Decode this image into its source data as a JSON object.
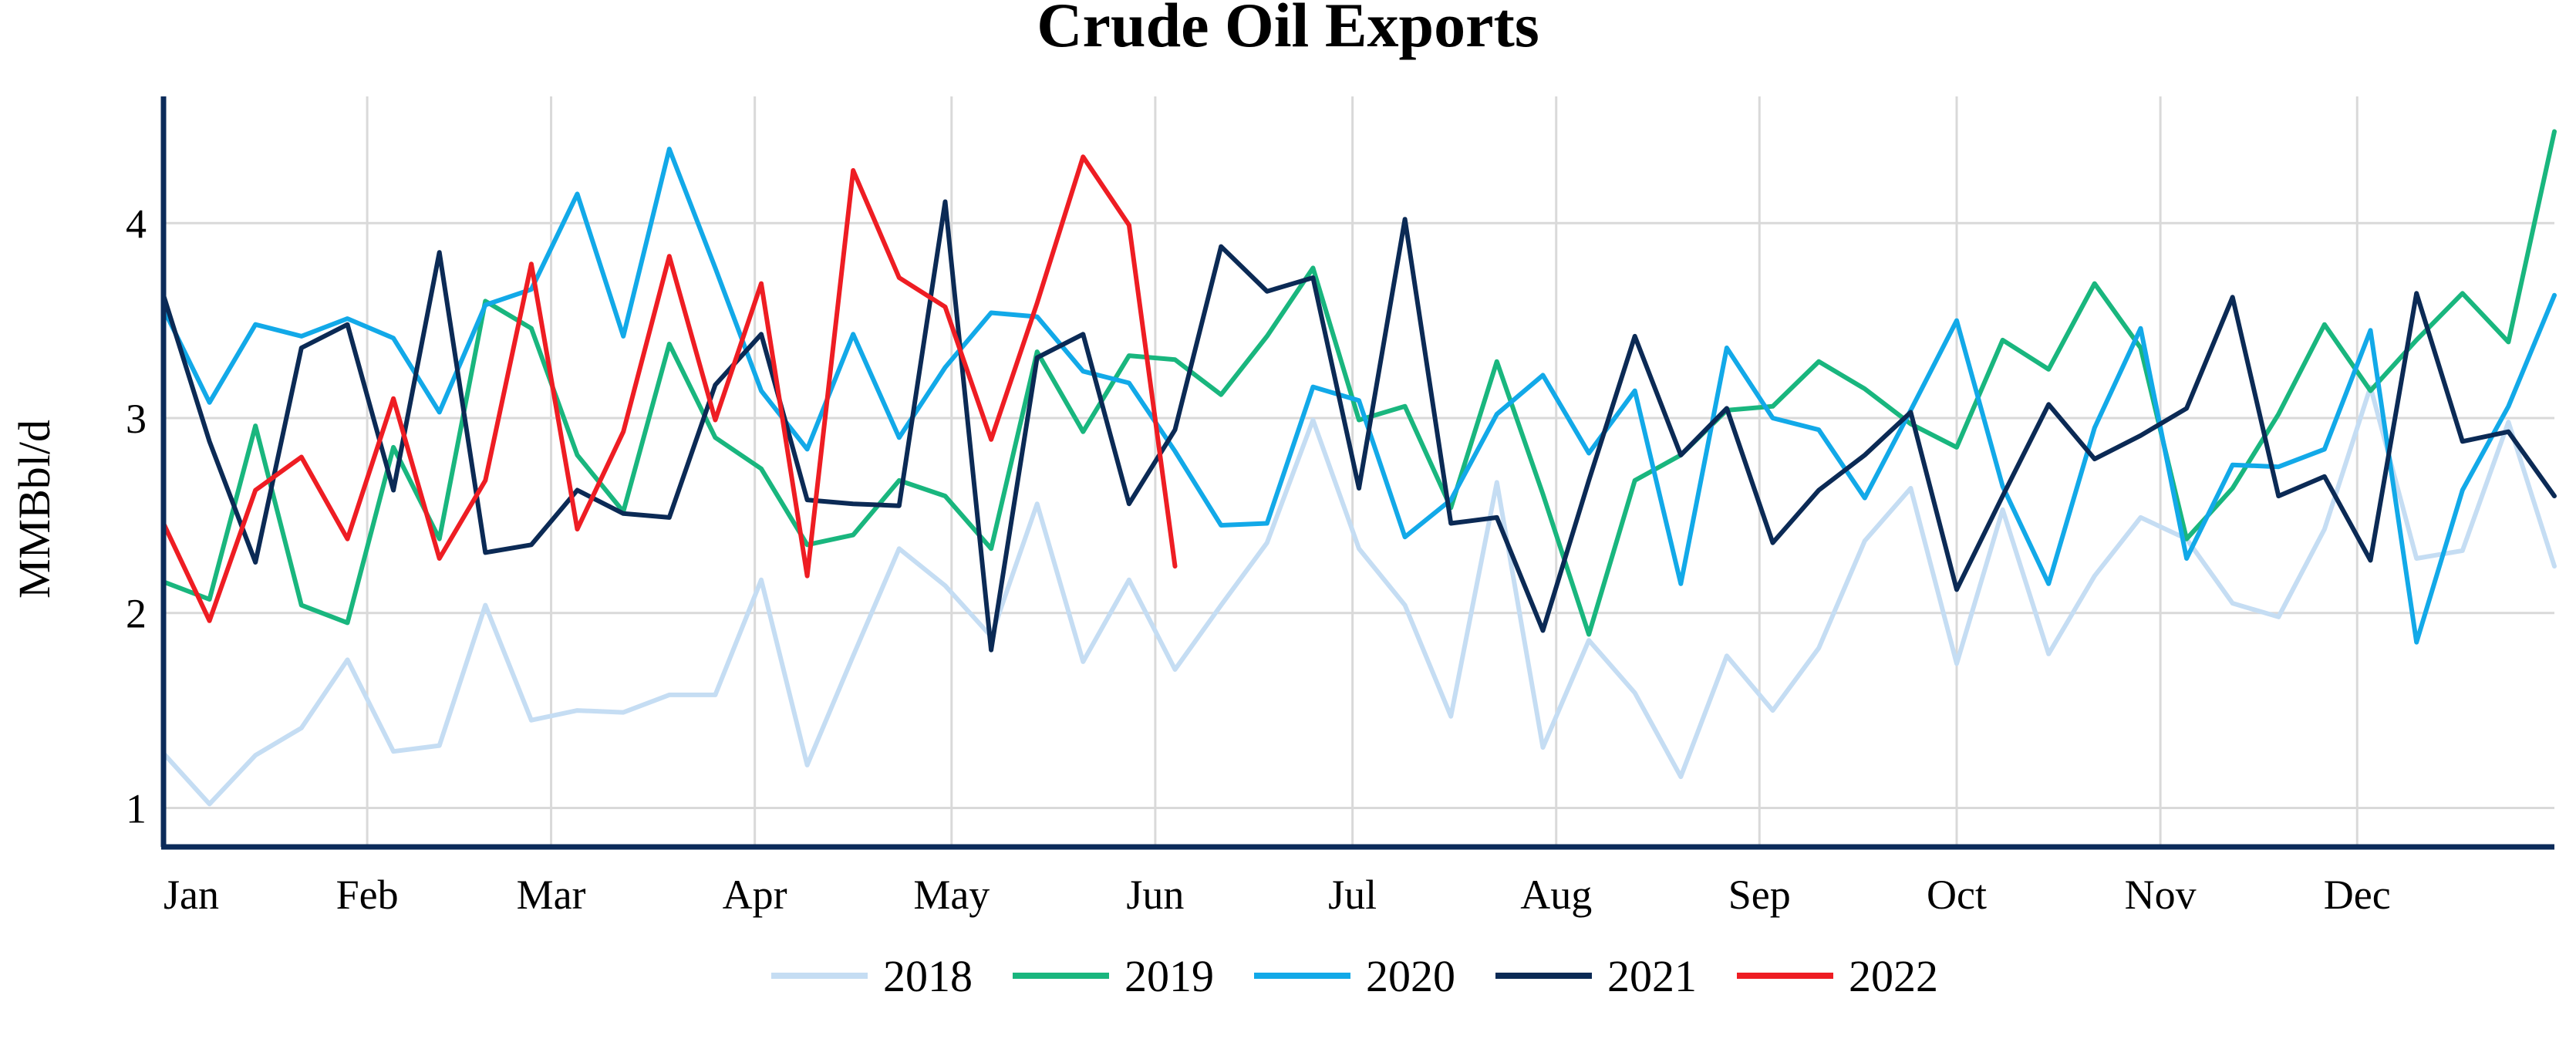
{
  "chart_data": {
    "type": "line",
    "title": "Crude Oil Exports",
    "xlabel": "",
    "ylabel": "MMBbl/d",
    "ylim": [
      0.8,
      4.65
    ],
    "yticks": [
      1,
      2,
      3,
      4
    ],
    "x_tick_labels": [
      "Jan",
      "Feb",
      "Mar",
      "Apr",
      "May",
      "Jun",
      "Jul",
      "Aug",
      "Sep",
      "Oct",
      "Nov",
      "Dec"
    ],
    "x_unit": "week of year (1-53)",
    "xlim": [
      1,
      53
    ],
    "grid": true,
    "legend_position": "bottom",
    "series": [
      {
        "name": "2018",
        "color": "#c5ddf3",
        "x": [
          1,
          2,
          3,
          4,
          5,
          6,
          7,
          8,
          9,
          10,
          11,
          12,
          13,
          14,
          15,
          16,
          17,
          18,
          19,
          20,
          21,
          22,
          23,
          24,
          25,
          26,
          27,
          28,
          29,
          30,
          31,
          32,
          33,
          34,
          35,
          36,
          37,
          38,
          39,
          40,
          41,
          42,
          43,
          44,
          45,
          46,
          47,
          48,
          49,
          50,
          51,
          52,
          53
        ],
        "values": [
          1.28,
          1.02,
          1.27,
          1.41,
          1.76,
          1.29,
          1.32,
          2.04,
          1.45,
          1.5,
          1.49,
          1.58,
          1.58,
          2.17,
          1.22,
          1.78,
          2.33,
          2.14,
          1.88,
          2.56,
          1.75,
          2.17,
          1.71,
          2.04,
          2.36,
          2.99,
          2.33,
          2.04,
          1.47,
          2.67,
          1.31,
          1.86,
          1.59,
          1.16,
          1.78,
          1.5,
          1.82,
          2.37,
          2.64,
          1.74,
          2.53,
          1.79,
          2.19,
          2.49,
          2.38,
          2.05,
          1.98,
          2.43,
          3.16,
          2.28,
          2.32,
          2.98,
          2.24
        ]
      },
      {
        "name": "2019",
        "color": "#19b67e",
        "x": [
          1,
          2,
          3,
          4,
          5,
          6,
          7,
          8,
          9,
          10,
          11,
          12,
          13,
          14,
          15,
          16,
          17,
          18,
          19,
          20,
          21,
          22,
          23,
          24,
          25,
          26,
          27,
          28,
          29,
          30,
          31,
          32,
          33,
          34,
          35,
          36,
          37,
          38,
          39,
          40,
          41,
          42,
          43,
          44,
          45,
          46,
          47,
          48,
          49,
          50,
          51,
          52,
          53
        ],
        "values": [
          2.16,
          2.07,
          2.96,
          2.04,
          1.95,
          2.85,
          2.38,
          3.6,
          3.46,
          2.81,
          2.52,
          3.38,
          2.9,
          2.74,
          2.35,
          2.4,
          2.68,
          2.6,
          2.33,
          3.34,
          2.93,
          3.32,
          3.3,
          3.12,
          3.42,
          3.77,
          2.99,
          3.06,
          2.54,
          3.29,
          2.61,
          1.89,
          2.68,
          2.81,
          3.04,
          3.06,
          3.29,
          3.15,
          2.97,
          2.85,
          3.4,
          3.25,
          3.69,
          3.36,
          2.38,
          2.64,
          3.02,
          3.48,
          3.14,
          3.4,
          3.64,
          3.39,
          4.47
        ]
      },
      {
        "name": "2020",
        "color": "#12a9e8",
        "x": [
          1,
          2,
          3,
          4,
          5,
          6,
          7,
          8,
          9,
          10,
          11,
          12,
          13,
          14,
          15,
          16,
          17,
          18,
          19,
          20,
          21,
          22,
          23,
          24,
          25,
          26,
          27,
          28,
          29,
          30,
          31,
          32,
          33,
          34,
          35,
          36,
          37,
          38,
          39,
          40,
          41,
          42,
          43,
          44,
          45,
          46,
          47,
          48,
          49,
          50,
          51,
          52,
          53
        ],
        "values": [
          3.56,
          3.08,
          3.48,
          3.42,
          3.51,
          3.41,
          3.03,
          3.58,
          3.66,
          4.15,
          3.42,
          4.38,
          3.77,
          3.14,
          2.84,
          3.43,
          2.9,
          3.26,
          3.54,
          3.52,
          3.24,
          3.18,
          2.83,
          2.45,
          2.46,
          3.16,
          3.09,
          2.39,
          2.58,
          3.02,
          3.22,
          2.82,
          3.14,
          2.15,
          3.36,
          3.0,
          2.94,
          2.59,
          3.04,
          3.5,
          2.65,
          2.15,
          2.95,
          3.46,
          2.28,
          2.76,
          2.75,
          2.84,
          3.45,
          1.85,
          2.63,
          3.06,
          3.63
        ]
      },
      {
        "name": "2021",
        "color": "#0b2a55",
        "x": [
          1,
          2,
          3,
          4,
          5,
          6,
          7,
          8,
          9,
          10,
          11,
          12,
          13,
          14,
          15,
          16,
          17,
          18,
          19,
          20,
          21,
          22,
          23,
          24,
          25,
          26,
          27,
          28,
          29,
          30,
          31,
          32,
          33,
          34,
          35,
          36,
          37,
          38,
          39,
          40,
          41,
          42,
          43,
          44,
          45,
          46,
          47,
          48,
          49,
          50,
          51,
          52,
          53
        ],
        "values": [
          3.63,
          2.88,
          2.26,
          3.36,
          3.48,
          2.63,
          3.85,
          2.31,
          2.35,
          2.63,
          2.51,
          2.49,
          3.17,
          3.43,
          2.58,
          2.56,
          2.55,
          4.11,
          1.81,
          3.31,
          3.43,
          2.56,
          2.94,
          3.88,
          3.65,
          3.72,
          2.64,
          4.02,
          2.46,
          2.49,
          1.91,
          2.68,
          3.42,
          2.81,
          3.05,
          2.36,
          2.63,
          2.81,
          3.03,
          2.12,
          2.6,
          3.07,
          2.79,
          2.91,
          3.05,
          3.62,
          2.6,
          2.7,
          2.27,
          3.64,
          2.88,
          2.93,
          2.6
        ]
      },
      {
        "name": "2022",
        "color": "#ee1d23",
        "x": [
          1,
          2,
          3,
          4,
          5,
          6,
          7,
          8,
          9,
          10,
          11,
          12,
          13,
          14,
          15,
          16,
          17,
          18,
          19,
          20,
          21,
          22,
          23
        ],
        "values": [
          2.46,
          1.96,
          2.63,
          2.8,
          2.38,
          3.1,
          2.28,
          2.68,
          3.79,
          2.43,
          2.93,
          3.83,
          2.99,
          3.69,
          2.19,
          4.27,
          3.72,
          3.57,
          2.89,
          3.59,
          4.34,
          3.99,
          2.24
        ]
      }
    ]
  }
}
